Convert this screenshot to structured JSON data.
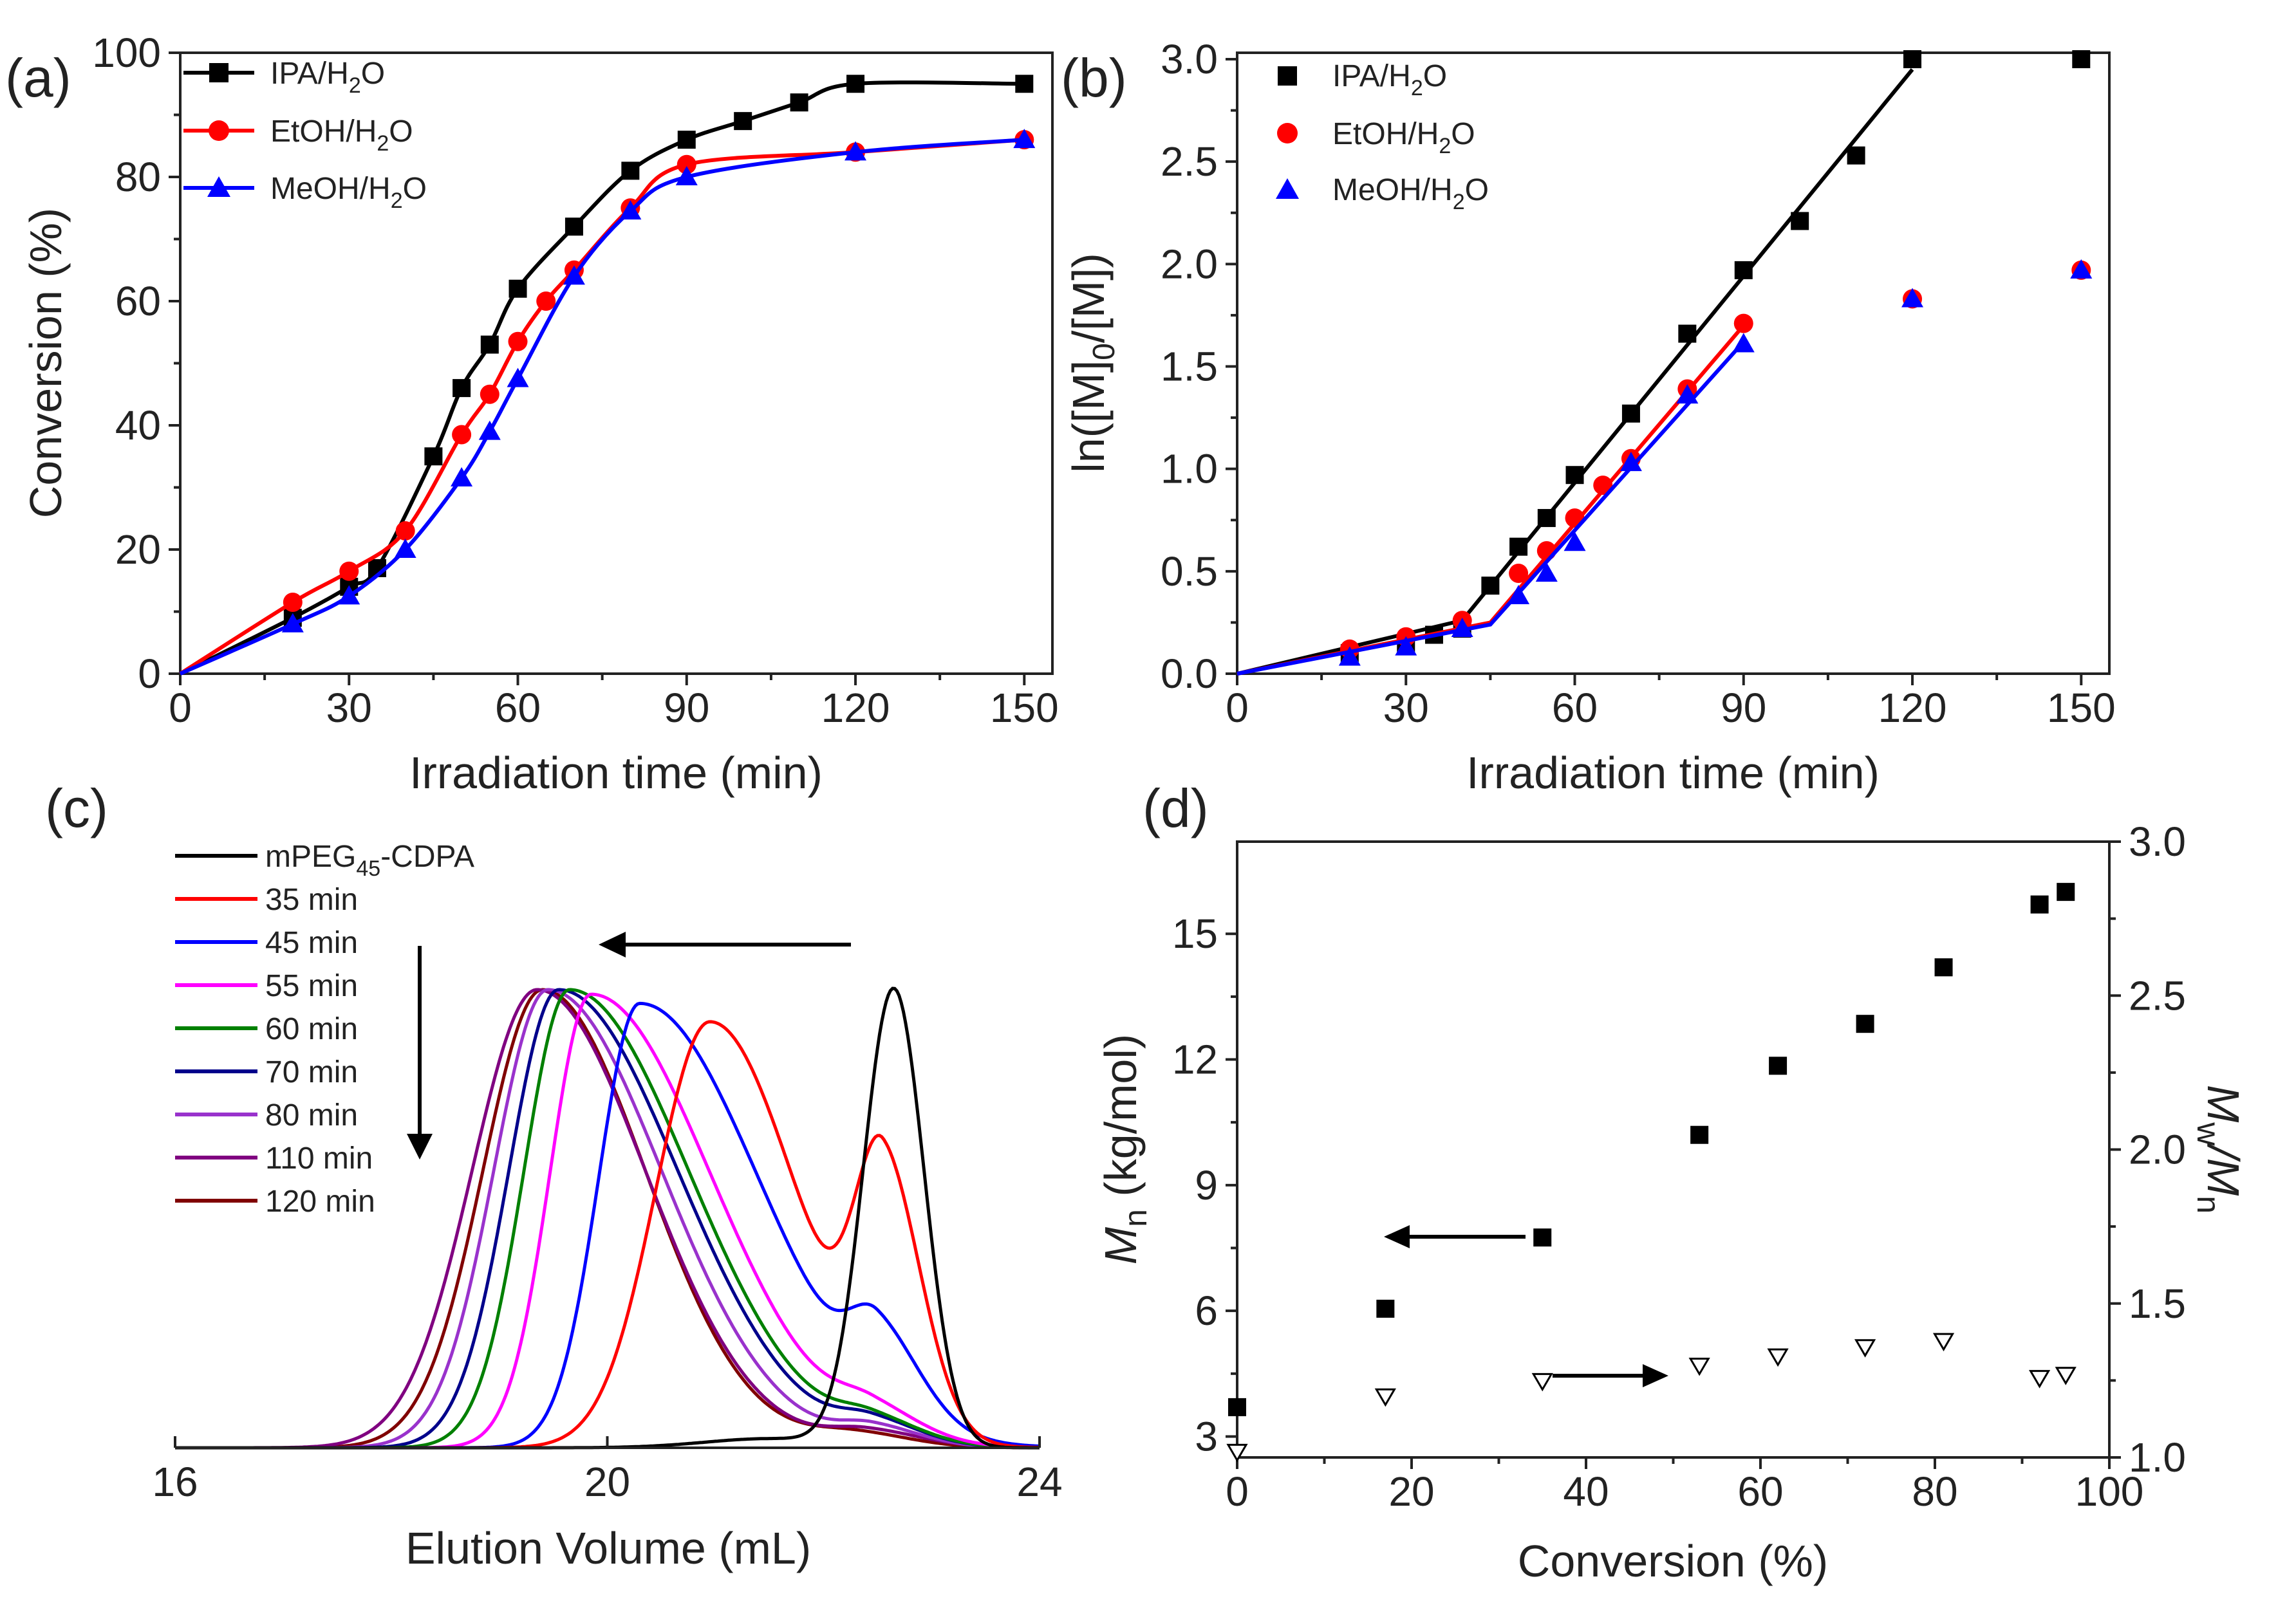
{
  "chart_data": [
    {
      "id": "a",
      "panel_label": "(a)",
      "type": "line",
      "xlabel": "Irradiation time (min)",
      "ylabel": "Conversion (%)",
      "xlim": [
        0,
        155
      ],
      "ylim": [
        0,
        100
      ],
      "xticks": [
        0,
        30,
        60,
        90,
        120,
        150
      ],
      "yticks": [
        0,
        20,
        40,
        60,
        80,
        100
      ],
      "legend_position": "top-left",
      "series": [
        {
          "name": "IPA/H2O",
          "label_main": "IPA/H",
          "label_sub": "2",
          "label_tail": "O",
          "color": "#000000",
          "marker": "square",
          "x": [
            0,
            20,
            30,
            35,
            45,
            50,
            55,
            60,
            70,
            80,
            90,
            100,
            110,
            120,
            150
          ],
          "y": [
            0,
            9,
            14,
            17,
            35,
            46,
            53,
            62,
            72,
            81,
            86,
            89,
            92,
            95,
            95
          ]
        },
        {
          "name": "EtOH/H2O",
          "label_main": "EtOH/H",
          "label_sub": "2",
          "label_tail": "O",
          "color": "#ff0000",
          "marker": "circle",
          "x": [
            0,
            20,
            30,
            40,
            50,
            55,
            60,
            65,
            70,
            80,
            90,
            120,
            150
          ],
          "y": [
            0,
            11.5,
            16.5,
            23,
            38.5,
            45,
            53.5,
            60,
            65,
            75,
            82,
            84,
            86
          ]
        },
        {
          "name": "MeOH/H2O",
          "label_main": "MeOH/H",
          "label_sub": "2",
          "label_tail": "O",
          "color": "#0000ff",
          "marker": "triangle",
          "x": [
            0,
            20,
            30,
            40,
            50,
            55,
            60,
            70,
            80,
            90,
            120,
            150
          ],
          "y": [
            0,
            8,
            12.5,
            20,
            31.5,
            39,
            47.5,
            64,
            74.5,
            80,
            84,
            86
          ]
        }
      ]
    },
    {
      "id": "b",
      "panel_label": "(b)",
      "type": "scatter",
      "xlabel": "Irradiation time (min)",
      "ylabel_parts": [
        "ln([M]",
        "0",
        "/[M])"
      ],
      "xlim": [
        0,
        155
      ],
      "ylim": [
        0,
        3.0
      ],
      "xticks": [
        0,
        30,
        60,
        90,
        120,
        150
      ],
      "yticks": [
        0.0,
        0.5,
        1.0,
        1.5,
        2.0,
        2.5,
        3.0
      ],
      "ytick_labels": [
        "0.0",
        "0.5",
        "1.0",
        "1.5",
        "2.0",
        "2.5",
        "3.0"
      ],
      "legend_position": "top-center",
      "series": [
        {
          "name": "IPA/H2O",
          "label_main": "IPA/H",
          "label_sub": "2",
          "label_tail": "O",
          "color": "#000000",
          "marker": "square",
          "x": [
            20,
            30,
            35,
            40,
            45,
            50,
            55,
            60,
            70,
            80,
            90,
            100,
            110,
            120,
            150
          ],
          "y": [
            0.1,
            0.15,
            0.19,
            0.22,
            0.43,
            0.62,
            0.76,
            0.97,
            1.27,
            1.66,
            1.97,
            2.21,
            2.53,
            3.0,
            3.0
          ],
          "fit_x": [
            0,
            40,
            120
          ],
          "fit_y": [
            0,
            0.26,
            2.95
          ]
        },
        {
          "name": "EtOH/H2O",
          "label_main": "EtOH/H",
          "label_sub": "2",
          "label_tail": "O",
          "color": "#ff0000",
          "marker": "circle",
          "x": [
            20,
            30,
            40,
            50,
            55,
            60,
            65,
            70,
            80,
            90,
            120,
            150
          ],
          "y": [
            0.12,
            0.18,
            0.26,
            0.49,
            0.6,
            0.76,
            0.92,
            1.05,
            1.39,
            1.71,
            1.83,
            1.97
          ],
          "fit_x": [
            0,
            45,
            90
          ],
          "fit_y": [
            0,
            0.25,
            1.7
          ]
        },
        {
          "name": "MeOH/H2O",
          "label_main": "MeOH/H",
          "label_sub": "2",
          "label_tail": "O",
          "color": "#0000ff",
          "marker": "triangle",
          "x": [
            20,
            30,
            40,
            50,
            55,
            60,
            70,
            80,
            90,
            120,
            150
          ],
          "y": [
            0.08,
            0.13,
            0.22,
            0.38,
            0.49,
            0.64,
            1.03,
            1.36,
            1.61,
            1.83,
            1.97
          ],
          "fit_x": [
            0,
            45,
            90
          ],
          "fit_y": [
            0,
            0.24,
            1.62
          ]
        }
      ]
    },
    {
      "id": "c",
      "panel_label": "(c)",
      "type": "line",
      "xlabel": "Elution Volume (mL)",
      "xlim": [
        16,
        24
      ],
      "ylim": [
        0,
        1.08
      ],
      "xticks": [
        16,
        20,
        24
      ],
      "legend_position": "top-left",
      "series": [
        {
          "name": "mPEG45-CDPA",
          "label_main": "mPEG",
          "label_sub": "45",
          "label_tail": "-CDPA",
          "color": "#000000",
          "peaks": [
            {
              "center": 22.65,
              "height": 1.0,
              "width_left": 0.28,
              "width_right": 0.28
            },
            {
              "center": 21.5,
              "height": 0.02,
              "width_left": 0.6,
              "width_right": 0.6
            }
          ]
        },
        {
          "name": "35 min",
          "label_main": "35 min",
          "color": "#ff0000",
          "peaks": [
            {
              "center": 20.95,
              "height": 0.93,
              "width_left": 0.5,
              "width_right": 0.8
            },
            {
              "center": 22.55,
              "height": 0.55,
              "width_left": 0.25,
              "width_right": 0.35
            }
          ]
        },
        {
          "name": "45 min",
          "label_main": "45 min",
          "color": "#0000ff",
          "peaks": [
            {
              "center": 20.3,
              "height": 0.97,
              "width_left": 0.38,
              "width_right": 1.1
            },
            {
              "center": 22.5,
              "height": 0.17,
              "width_left": 0.25,
              "width_right": 0.4
            }
          ]
        },
        {
          "name": "55 min",
          "label_main": "55 min",
          "color": "#ff00ff",
          "peaks": [
            {
              "center": 19.85,
              "height": 0.99,
              "width_left": 0.38,
              "width_right": 1.1
            },
            {
              "center": 22.45,
              "height": 0.055,
              "width_left": 0.3,
              "width_right": 0.45
            }
          ]
        },
        {
          "name": "60 min",
          "label_main": "60 min",
          "color": "#008000",
          "peaks": [
            {
              "center": 19.65,
              "height": 1.0,
              "width_left": 0.42,
              "width_right": 1.1
            },
            {
              "center": 22.45,
              "height": 0.045,
              "width_left": 0.3,
              "width_right": 0.45
            }
          ]
        },
        {
          "name": "70 min",
          "label_main": "70 min",
          "color": "#00008b",
          "peaks": [
            {
              "center": 19.55,
              "height": 1.0,
              "width_left": 0.46,
              "width_right": 1.1
            },
            {
              "center": 22.45,
              "height": 0.045,
              "width_left": 0.3,
              "width_right": 0.45
            }
          ]
        },
        {
          "name": "80 min",
          "label_main": "80 min",
          "color": "#9932cc",
          "peaks": [
            {
              "center": 19.45,
              "height": 1.0,
              "width_left": 0.5,
              "width_right": 1.05
            },
            {
              "center": 22.45,
              "height": 0.04,
              "width_left": 0.3,
              "width_right": 0.45
            }
          ]
        },
        {
          "name": "110 min",
          "label_main": "110 min",
          "color": "#800080",
          "peaks": [
            {
              "center": 19.35,
              "height": 1.0,
              "width_left": 0.6,
              "width_right": 1.0
            },
            {
              "center": 22.4,
              "height": 0.035,
              "width_left": 0.35,
              "width_right": 0.5
            }
          ]
        },
        {
          "name": "120 min",
          "label_main": "120 min",
          "color": "#800000",
          "peaks": [
            {
              "center": 19.4,
              "height": 1.0,
              "width_left": 0.55,
              "width_right": 0.95
            },
            {
              "center": 22.3,
              "height": 0.03,
              "width_left": 0.4,
              "width_right": 0.5
            }
          ]
        }
      ]
    },
    {
      "id": "d",
      "panel_label": "(d)",
      "type": "scatter",
      "xlabel": "Conversion (%)",
      "ylabel_main": "M",
      "ylabel_sub": "n",
      "ylabel_unit": " (kg/mol)",
      "y2label_parts": [
        "M",
        "w",
        "/M",
        "n"
      ],
      "xlim": [
        0,
        100
      ],
      "ylim": [
        2.5,
        17.2
      ],
      "y2lim": [
        1.0,
        3.0
      ],
      "xticks": [
        0,
        20,
        40,
        60,
        80,
        100
      ],
      "yticks": [
        3,
        6,
        9,
        12,
        15
      ],
      "y2ticks": [
        1.0,
        1.5,
        2.0,
        2.5,
        3.0
      ],
      "y2tick_labels": [
        "1.0",
        "1.5",
        "2.0",
        "2.5",
        "3.0"
      ],
      "series": [
        {
          "name": "Mn",
          "axis": "left",
          "marker": "square",
          "color": "#000000",
          "x": [
            0,
            17,
            35,
            53,
            62,
            72,
            81,
            92,
            95
          ],
          "y": [
            3.7,
            6.05,
            7.75,
            10.2,
            11.85,
            12.85,
            14.2,
            15.7,
            16.0
          ]
        },
        {
          "name": "Mw/Mn",
          "axis": "right",
          "marker": "triangle-down-open",
          "color": "#000000",
          "x": [
            0,
            17,
            35,
            53,
            62,
            72,
            81,
            92,
            95
          ],
          "y": [
            1.02,
            1.2,
            1.25,
            1.3,
            1.33,
            1.36,
            1.38,
            1.26,
            1.27
          ]
        }
      ]
    }
  ]
}
